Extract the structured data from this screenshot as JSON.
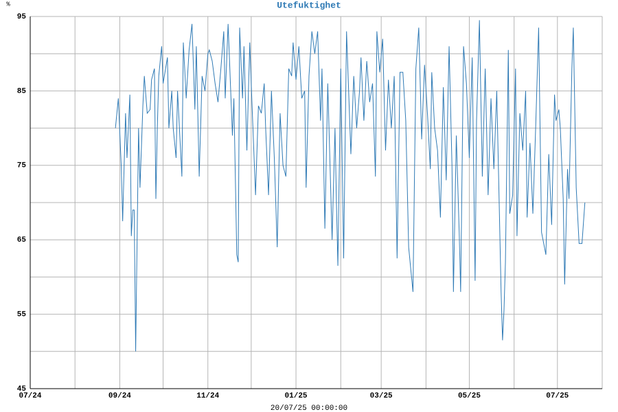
{
  "chart_data": {
    "type": "line",
    "title": "Utefuktighet",
    "y_unit": "%",
    "footer": "20/07/25 00:00:00",
    "xlim": [
      0,
      396
    ],
    "ylim": [
      45,
      95
    ],
    "xticks": [
      {
        "value": 0,
        "label": "07/24"
      },
      {
        "value": 62,
        "label": "09/24"
      },
      {
        "value": 123,
        "label": "11/24"
      },
      {
        "value": 184,
        "label": "01/25"
      },
      {
        "value": 243,
        "label": "03/25"
      },
      {
        "value": 304,
        "label": "05/25"
      },
      {
        "value": 365,
        "label": "07/25"
      }
    ],
    "minor_xticks": [
      31,
      92,
      153,
      215,
      274,
      335,
      396
    ],
    "yticks": [
      45,
      55,
      65,
      75,
      85,
      95
    ],
    "minor_yticks": [
      50,
      60,
      70,
      80,
      90
    ],
    "grid": true,
    "series": [
      {
        "color": "#2f7ab5",
        "x": [
          59,
          61,
          63,
          64,
          66,
          67,
          69,
          70,
          71,
          72,
          73,
          75,
          76,
          78,
          79,
          81,
          83,
          84,
          86,
          87,
          88,
          89,
          91,
          92,
          95,
          96,
          98,
          99,
          101,
          102,
          105,
          106,
          108,
          110,
          112,
          114,
          115,
          117,
          119,
          121,
          123,
          124,
          126,
          128,
          130,
          132,
          134,
          135,
          137,
          140,
          141,
          143,
          144,
          145,
          147,
          148,
          150,
          152,
          153,
          156,
          158,
          160,
          162,
          163,
          165,
          167,
          169,
          171,
          173,
          175,
          177,
          179,
          181,
          182,
          184,
          186,
          188,
          190,
          191,
          193,
          195,
          197,
          199,
          201,
          202,
          204,
          206,
          208,
          209,
          211,
          212,
          213,
          215,
          217,
          219,
          221,
          222,
          224,
          226,
          228,
          229,
          231,
          233,
          235,
          237,
          239,
          240,
          242,
          244,
          246,
          248,
          250,
          252,
          254,
          256,
          258,
          260,
          262,
          264,
          265,
          267,
          269,
          271,
          273,
          275,
          277,
          278,
          280,
          282,
          284,
          286,
          288,
          290,
          292,
          293,
          295,
          297,
          298,
          300,
          302,
          304,
          306,
          308,
          309,
          311,
          313,
          315,
          317,
          319,
          321,
          323,
          325,
          326,
          327,
          328,
          329,
          331,
          332,
          334,
          336,
          337,
          339,
          341,
          343,
          344,
          346,
          348,
          350,
          352,
          354,
          355,
          357,
          359,
          361,
          363,
          364,
          366,
          367,
          369,
          370,
          372,
          373,
          375,
          376,
          378,
          380,
          382,
          384
        ],
        "values": [
          80,
          84,
          75,
          67.5,
          82,
          76,
          84.5,
          65.5,
          69,
          69,
          50,
          80,
          72,
          83,
          87,
          82,
          82.5,
          86.5,
          88,
          70.5,
          80,
          87,
          91,
          86,
          89.5,
          80,
          85,
          80,
          76,
          85,
          73.5,
          91.5,
          84,
          90.5,
          94,
          82.5,
          91,
          73.5,
          87,
          85,
          90,
          90.5,
          89,
          86,
          83.5,
          88,
          93,
          84,
          94,
          79,
          84,
          63,
          62,
          93.5,
          84,
          91,
          77,
          91.5,
          86,
          71,
          83,
          82,
          86,
          80,
          71,
          85,
          76,
          64,
          82,
          75,
          73.5,
          88,
          87,
          91.5,
          86.5,
          91,
          84,
          85,
          72,
          87,
          93,
          90,
          93,
          81,
          88,
          66.5,
          86,
          72,
          65,
          80,
          70,
          61.5,
          88,
          62.5,
          93,
          82,
          76.5,
          87,
          80,
          85,
          89.5,
          81,
          89,
          83.5,
          86,
          73.5,
          93,
          87.5,
          92,
          77,
          86.5,
          80,
          87,
          62.5,
          87.5,
          87.5,
          81,
          64,
          60,
          58,
          88,
          93.5,
          78.5,
          88.5,
          82,
          74.5,
          87.5,
          80,
          77,
          68,
          85.5,
          73,
          91,
          75,
          58,
          79,
          66,
          58,
          91,
          86,
          76,
          89.5,
          59.5,
          81,
          94.5,
          73.5,
          88,
          71,
          84,
          74.5,
          85,
          67,
          58,
          51.5,
          55.5,
          62,
          90.5,
          68.5,
          71,
          88,
          65.5,
          82,
          77,
          85,
          68,
          78,
          68.5,
          80.5,
          93.5,
          66,
          65,
          63,
          76.5,
          67,
          84.5,
          81,
          82.5,
          80,
          70.5,
          59,
          74.5,
          70.5,
          88,
          93.5,
          72,
          64.5,
          64.5,
          70
        ]
      }
    ]
  }
}
